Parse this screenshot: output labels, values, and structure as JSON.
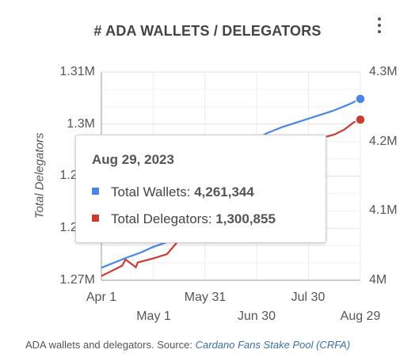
{
  "title": "# ADA WALLETS / DELEGATORS",
  "menu_icon": "more-vertical-icon",
  "chart_data": {
    "type": "line",
    "ylabel_left": "Total Delegators",
    "y_left_ticks": [
      "1.31M",
      "1.3M",
      "1.29M",
      "1.28M",
      "1.27M"
    ],
    "y_left_range": [
      1270000,
      1310000
    ],
    "y_right_ticks": [
      "4.3M",
      "4.2M",
      "4.1M",
      "4M"
    ],
    "y_right_range": [
      4000000,
      4300000
    ],
    "x_ticks_top": [
      "Apr 1",
      "May 31",
      "Jul 30"
    ],
    "x_ticks_bottom": [
      "May 1",
      "Jun 30",
      "Aug 29"
    ],
    "x_range": [
      "2023-04-01",
      "2023-08-29"
    ],
    "grid": true,
    "series": [
      {
        "name": "Total Wallets",
        "axis": "right",
        "color": "#4a86e8",
        "x": [
          "2023-04-01",
          "2023-04-08",
          "2023-04-16",
          "2023-04-24",
          "2023-05-01",
          "2023-05-09",
          "2023-07-01",
          "2023-07-06",
          "2023-07-14",
          "2023-07-24",
          "2023-08-03",
          "2023-08-13",
          "2023-08-22",
          "2023-08-29"
        ],
        "values": [
          4018000,
          4025000,
          4033000,
          4040000,
          4048000,
          4055000,
          4205000,
          4212000,
          4220000,
          4228000,
          4236000,
          4244000,
          4253000,
          4261344
        ]
      },
      {
        "name": "Total Delegators",
        "axis": "left",
        "color": "#cc3b2e",
        "x": [
          "2023-04-01",
          "2023-04-07",
          "2023-04-13",
          "2023-04-15",
          "2023-04-21",
          "2023-04-22",
          "2023-05-01",
          "2023-05-09",
          "2023-07-02",
          "2023-07-10",
          "2023-07-20",
          "2023-07-30",
          "2023-08-07",
          "2023-08-14",
          "2023-08-20",
          "2023-08-25",
          "2023-08-29"
        ],
        "values": [
          1270800,
          1271800,
          1272800,
          1274000,
          1272500,
          1273400,
          1274200,
          1275000,
          1296000,
          1296400,
          1296700,
          1297000,
          1297400,
          1298000,
          1299000,
          1300300,
          1300855
        ]
      }
    ]
  },
  "tooltip": {
    "date": "Aug 29, 2023",
    "rows": [
      {
        "label": "Total Wallets: ",
        "value": "4,261,344",
        "color": "#4a86e8"
      },
      {
        "label": "Total Delegators: ",
        "value": "1,300,855",
        "color": "#cc3b2e"
      }
    ]
  },
  "caption": {
    "text": "ADA wallets and delegators. Source: ",
    "link": "Cardano Fans Stake Pool (CRFA)"
  }
}
